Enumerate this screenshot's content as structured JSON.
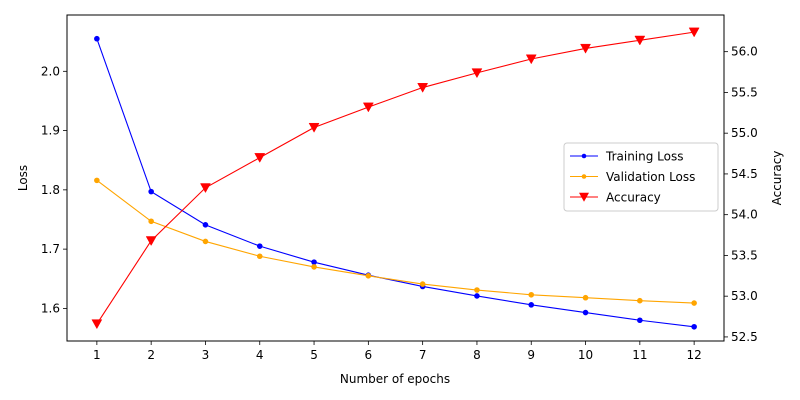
{
  "chart_data": {
    "type": "line",
    "x": [
      1,
      2,
      3,
      4,
      5,
      6,
      7,
      8,
      9,
      10,
      11,
      12
    ],
    "xlabel": "Number of epochs",
    "ylabel_left": "Loss",
    "ylabel_right": "Accuracy",
    "ylim_left": [
      1.545,
      2.095
    ],
    "ylim_right": [
      52.45,
      56.45
    ],
    "xlim": [
      0.45,
      12.55
    ],
    "x_ticks": [
      1,
      2,
      3,
      4,
      5,
      6,
      7,
      8,
      9,
      10,
      11,
      12
    ],
    "y_left_ticks": [
      "1.6",
      "1.7",
      "1.8",
      "1.9",
      "2.0"
    ],
    "y_right_ticks": [
      "52.5",
      "53.0",
      "53.5",
      "54.0",
      "54.5",
      "55.0",
      "55.5",
      "56.0"
    ],
    "grid": false,
    "legend_position": "center-right",
    "series": [
      {
        "name": "Training Loss",
        "axis": "left",
        "color": "#0000ff",
        "marker": "circle",
        "values": [
          2.055,
          1.797,
          1.741,
          1.705,
          1.678,
          1.656,
          1.637,
          1.621,
          1.606,
          1.593,
          1.58,
          1.569
        ]
      },
      {
        "name": "Validation Loss",
        "axis": "left",
        "color": "#ffa500",
        "marker": "circle",
        "values": [
          1.816,
          1.747,
          1.713,
          1.688,
          1.67,
          1.655,
          1.641,
          1.631,
          1.623,
          1.618,
          1.613,
          1.609
        ]
      },
      {
        "name": "Accuracy",
        "axis": "right",
        "color": "#ff0000",
        "marker": "triangle-down",
        "values": [
          52.66,
          53.68,
          54.33,
          54.7,
          55.07,
          55.32,
          55.56,
          55.74,
          55.91,
          56.04,
          56.14,
          56.24
        ]
      }
    ]
  }
}
